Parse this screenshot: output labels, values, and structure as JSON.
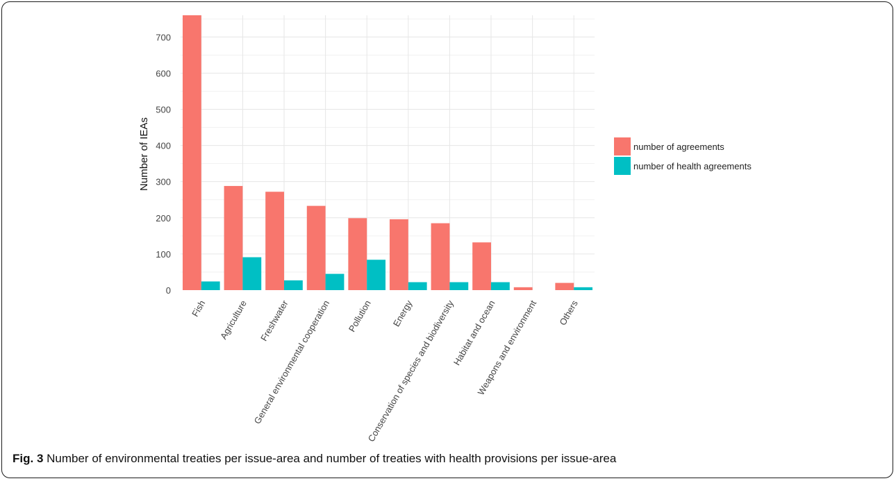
{
  "chart_data": {
    "type": "bar",
    "ylabel": "Number of IEAs",
    "xlabel": "",
    "ylim": [
      0,
      760
    ],
    "yticks": [
      0,
      100,
      200,
      300,
      400,
      500,
      600,
      700
    ],
    "grid": true,
    "legend_position": "right",
    "categories": [
      "Fish",
      "Agriculture",
      "Freshwater",
      "General environmental cooperation",
      "Pollution",
      "Energy",
      "Conservation of species and biodiversity",
      "Habitat and ocean",
      "Weapons and environment",
      "Others"
    ],
    "series": [
      {
        "name": "number of agreements",
        "color": "#f8766d",
        "values": [
          760,
          288,
          272,
          233,
          199,
          196,
          185,
          132,
          8,
          20
        ]
      },
      {
        "name": "number of health agreements",
        "color": "#00bfc4",
        "values": [
          24,
          91,
          27,
          45,
          84,
          22,
          22,
          22,
          0,
          8
        ]
      }
    ]
  },
  "caption": {
    "label": "Fig. 3",
    "text": " Number of environmental treaties per issue-area and number of treaties with health provisions per issue-area"
  }
}
